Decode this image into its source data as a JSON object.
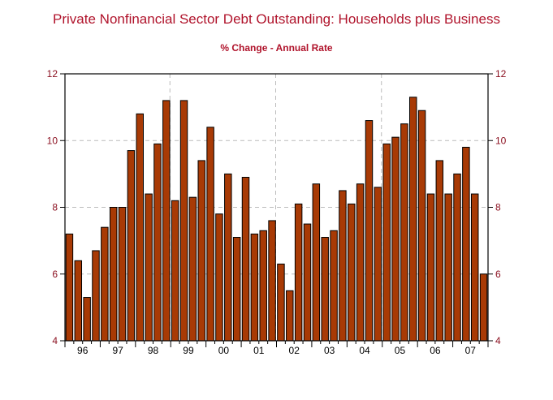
{
  "colors": {
    "bar_fill": "#a83a05",
    "bar_stroke": "#000000",
    "title": "#b0132b",
    "tick_label": "#8b1020",
    "grid": "#bbbbbb"
  },
  "chart_data": {
    "type": "bar",
    "title": "Private Nonfinancial Sector Debt Outstanding: Households plus Business",
    "subtitle": "% Change - Annual Rate",
    "xlabel": "",
    "ylabel": "",
    "ylim": [
      4,
      12
    ],
    "yticks": [
      4,
      6,
      8,
      10,
      12
    ],
    "y_axis_sides": [
      "left",
      "right"
    ],
    "grid": true,
    "year_labels": [
      "96",
      "97",
      "98",
      "99",
      "00",
      "01",
      "02",
      "03",
      "04",
      "05",
      "06",
      "07"
    ],
    "categories": [
      "96Q1",
      "96Q2",
      "96Q3",
      "96Q4",
      "97Q1",
      "97Q2",
      "97Q3",
      "97Q4",
      "98Q1",
      "98Q2",
      "98Q3",
      "98Q4",
      "99Q1",
      "99Q2",
      "99Q3",
      "99Q4",
      "00Q1",
      "00Q2",
      "00Q3",
      "00Q4",
      "01Q1",
      "01Q2",
      "01Q3",
      "01Q4",
      "02Q1",
      "02Q2",
      "02Q3",
      "02Q4",
      "03Q1",
      "03Q2",
      "03Q3",
      "03Q4",
      "04Q1",
      "04Q2",
      "04Q3",
      "04Q4",
      "05Q1",
      "05Q2",
      "05Q3",
      "05Q4",
      "06Q1",
      "06Q2",
      "06Q3",
      "06Q4",
      "07Q1",
      "07Q2",
      "07Q3",
      "07Q4"
    ],
    "values": [
      7.2,
      6.4,
      5.3,
      6.7,
      7.4,
      8.0,
      8.0,
      9.7,
      10.8,
      8.4,
      9.9,
      11.2,
      8.2,
      11.2,
      8.3,
      9.4,
      10.4,
      7.8,
      9.0,
      7.1,
      8.9,
      7.2,
      7.3,
      7.6,
      6.3,
      5.5,
      8.1,
      7.5,
      8.7,
      7.1,
      7.3,
      8.5,
      8.1,
      8.7,
      10.6,
      8.6,
      9.9,
      10.1,
      10.5,
      11.3,
      10.9,
      8.4,
      9.4,
      8.4,
      9.0,
      9.8,
      8.4,
      6.0
    ]
  }
}
